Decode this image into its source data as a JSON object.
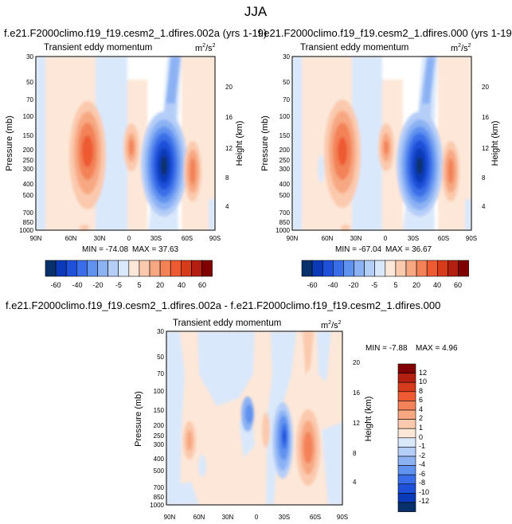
{
  "figure": {
    "title": "JJA"
  },
  "colors": {
    "neg_scale": [
      "#08306b",
      "#0a3ab8",
      "#1e50d9",
      "#3a6ee8",
      "#6092f0",
      "#8cb2f4",
      "#b5cef8",
      "#dae8fb"
    ],
    "pos_scale": [
      "#fde7d8",
      "#fbc9ad",
      "#f7a883",
      "#f38259",
      "#ee5a32",
      "#d63b1c",
      "#b31f10",
      "#800000"
    ]
  },
  "chart_data": [
    {
      "type": "contour",
      "panel": "top-left",
      "title": "f.e21.F2000climo.f19_f19.cesm2_1.dfires.002a (yrs 1-19)",
      "left_string": "Transient eddy momentum",
      "units_base": "m",
      "units_exp1": "2",
      "units_mid": "/s",
      "units_exp2": "2",
      "ylabel": "Pressure (mb)",
      "ylabel_right": "Height (km)",
      "x_ticks": [
        "90N",
        "60N",
        "30N",
        "0",
        "30S",
        "60S",
        "90S"
      ],
      "y_ticks": [
        "30",
        "50",
        "70",
        "100",
        "150",
        "200",
        "250",
        "300",
        "400",
        "500",
        "700",
        "850",
        "1000"
      ],
      "y_ticks_right": [
        "20",
        "16",
        "12",
        "8",
        "4"
      ],
      "min_text": "MIN = -74.08",
      "max_text": "MAX = 37.63",
      "min": -74.08,
      "max": 37.63,
      "colorbar_labels": [
        "-60",
        "-40",
        "-20",
        "-5",
        "5",
        "20",
        "40",
        "60"
      ]
    },
    {
      "type": "contour",
      "panel": "top-right",
      "title": "f.e21.F2000climo.f19_f19.cesm2_1.dfires.000 (yrs 1-19)",
      "left_string": "Transient eddy momentum",
      "units_base": "m",
      "units_exp1": "2",
      "units_mid": "/s",
      "units_exp2": "2",
      "ylabel": "Pressure (mb)",
      "ylabel_right": "Height (km)",
      "x_ticks": [
        "90N",
        "60N",
        "30N",
        "0",
        "30S",
        "60S",
        "90S"
      ],
      "y_ticks": [
        "30",
        "50",
        "70",
        "100",
        "150",
        "200",
        "250",
        "300",
        "400",
        "500",
        "700",
        "850",
        "1000"
      ],
      "y_ticks_right": [
        "20",
        "16",
        "12",
        "8",
        "4"
      ],
      "min_text": "MIN = -67.04",
      "max_text": "MAX = 36.67",
      "min": -67.04,
      "max": 36.67,
      "colorbar_labels": [
        "-60",
        "-40",
        "-20",
        "-5",
        "5",
        "20",
        "40",
        "60"
      ]
    },
    {
      "type": "contour",
      "panel": "bottom-difference",
      "title": "f.e21.F2000climo.f19_f19.cesm2_1.dfires.002a - f.e21.F2000climo.f19_f19.cesm2_1.dfires.000",
      "left_string": "Transient eddy momentum",
      "units_base": "m",
      "units_exp1": "2",
      "units_mid": "/s",
      "units_exp2": "2",
      "ylabel": "Pressure (mb)",
      "ylabel_right": "Height (km)",
      "x_ticks": [
        "90N",
        "60N",
        "30N",
        "0",
        "30S",
        "60S",
        "90S"
      ],
      "y_ticks": [
        "30",
        "50",
        "70",
        "100",
        "150",
        "200",
        "250",
        "300",
        "400",
        "500",
        "700",
        "850",
        "1000"
      ],
      "y_ticks_right": [
        "20",
        "16",
        "12",
        "8",
        "4"
      ],
      "min_text": "MIN = -7.88",
      "max_text": "MAX = 4.96",
      "min": -7.88,
      "max": 4.96,
      "colorbar_labels": [
        "12",
        "10",
        "8",
        "6",
        "4",
        "2",
        "1",
        "0",
        "-1",
        "-2",
        "-4",
        "-6",
        "-8",
        "-10",
        "-12"
      ]
    }
  ]
}
